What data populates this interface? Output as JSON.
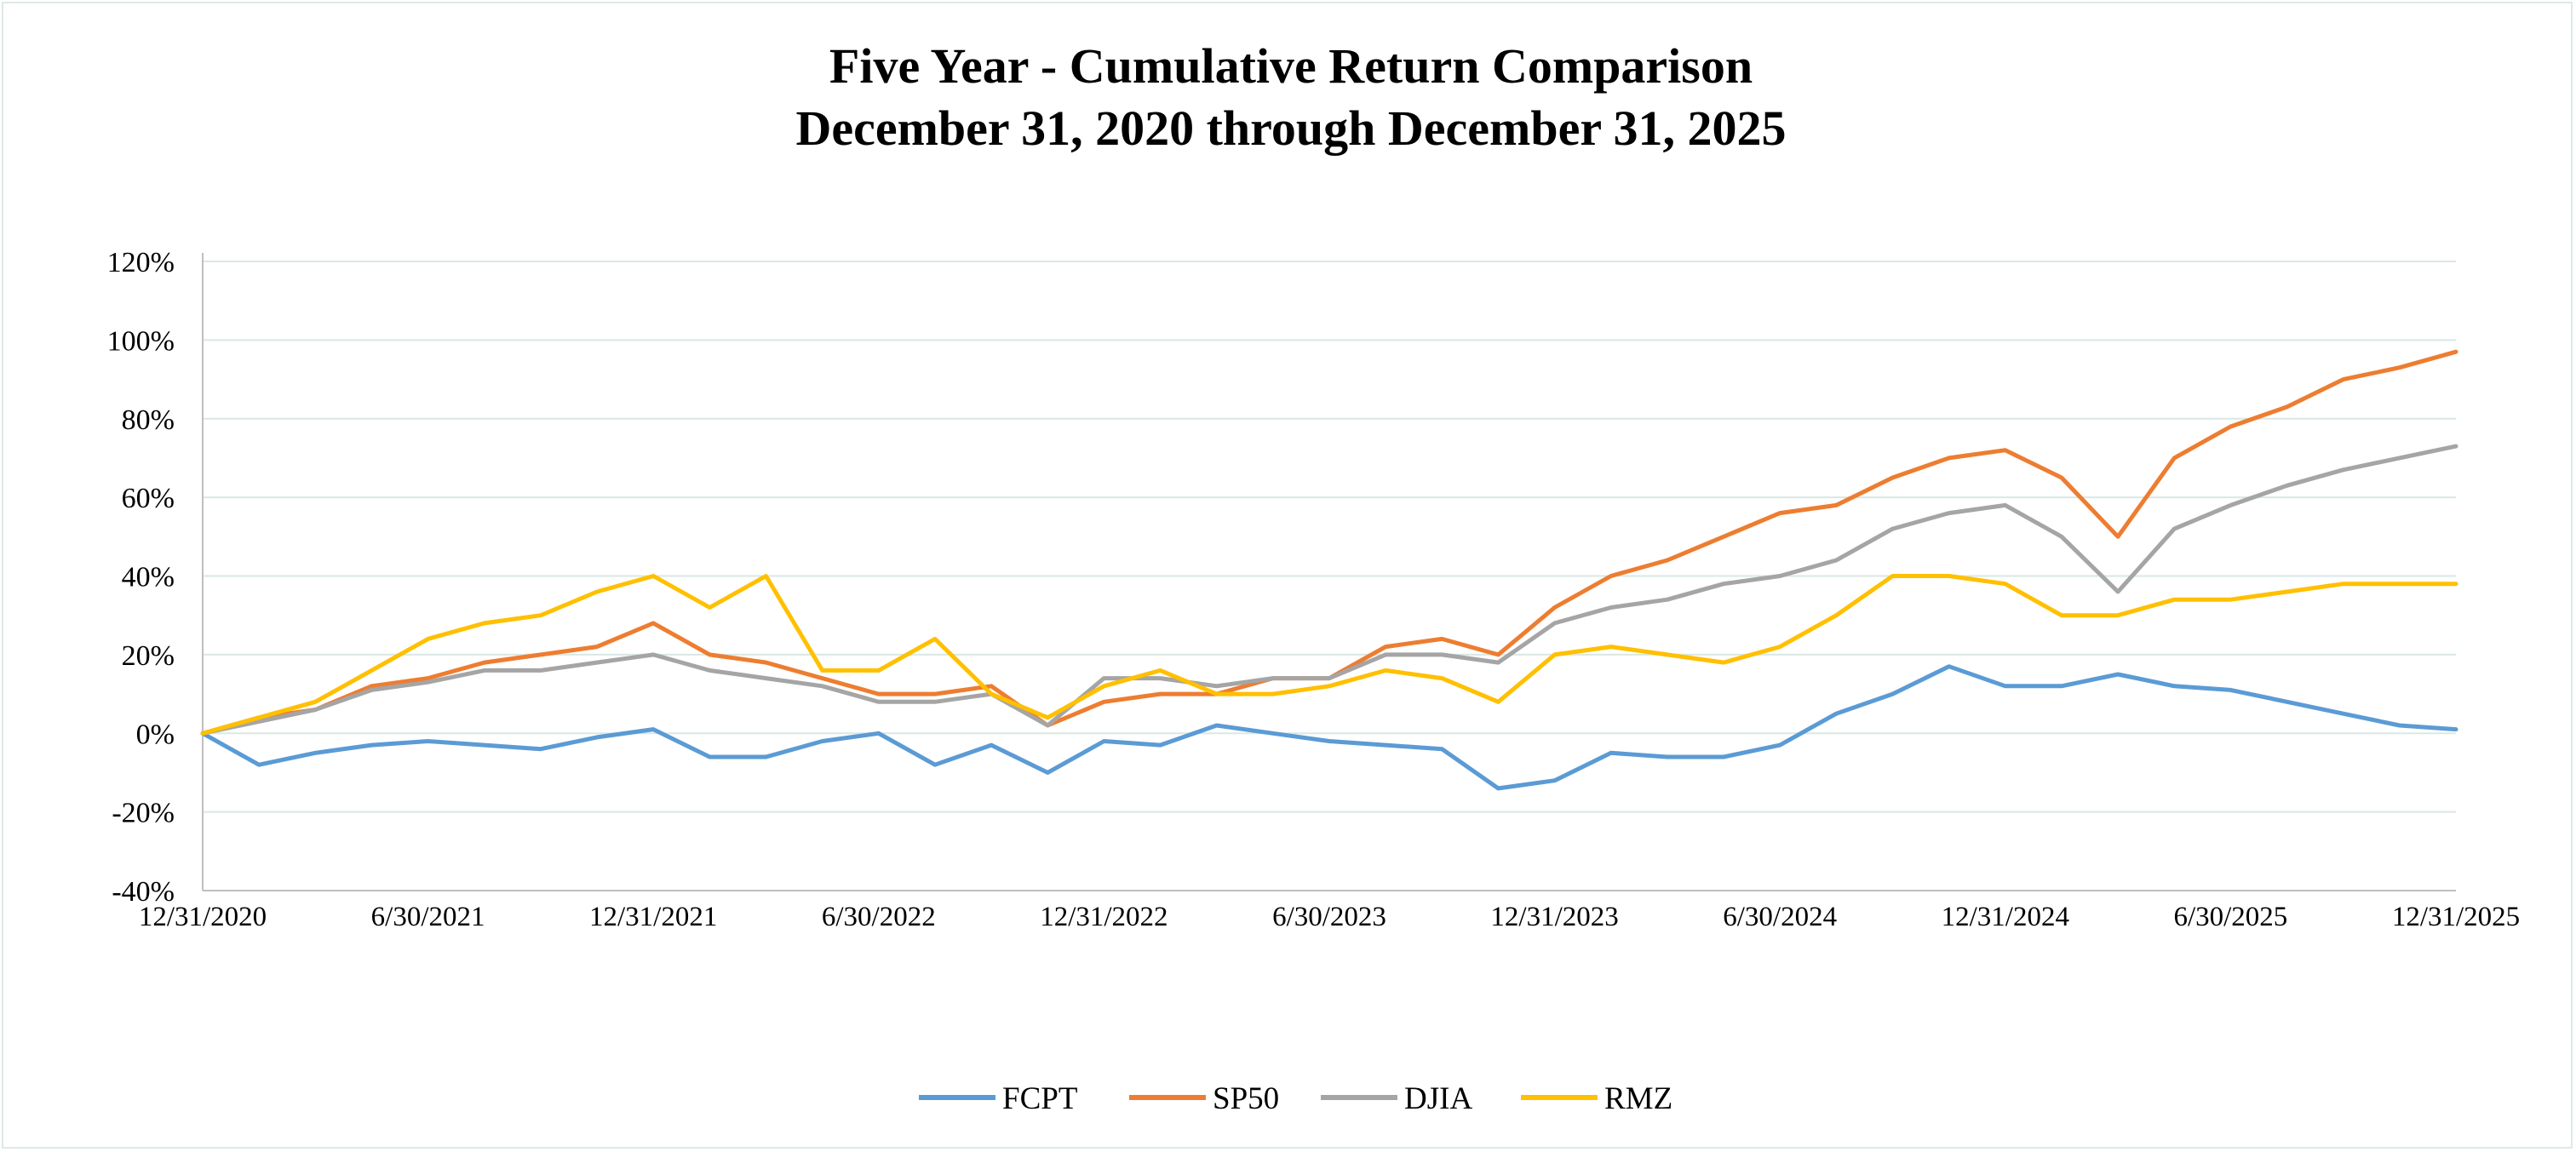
{
  "chart_data": {
    "type": "line",
    "title": "Five Year - Cumulative Return Comparison",
    "subtitle": "December 31, 2020 through December 31, 2025",
    "xlabel": "",
    "ylabel": "",
    "ylim": [
      -40,
      120
    ],
    "yticks": [
      -40,
      -20,
      0,
      20,
      40,
      60,
      80,
      100,
      120
    ],
    "ytick_labels": [
      "-40%",
      "-20%",
      "0%",
      "20%",
      "40%",
      "60%",
      "80%",
      "100%",
      "120%"
    ],
    "xlim": [
      0,
      10
    ],
    "xticks": [
      0,
      1,
      2,
      3,
      4,
      5,
      6,
      7,
      8,
      9,
      10
    ],
    "xtick_labels": [
      "12/31/2020",
      "6/30/2021",
      "12/31/2021",
      "6/30/2022",
      "12/31/2022",
      "6/30/2023",
      "12/31/2023",
      "6/30/2024",
      "12/31/2024",
      "6/30/2025",
      "12/31/2025"
    ],
    "grid": true,
    "legend_position": "bottom-center",
    "x": [
      0,
      0.25,
      0.5,
      0.75,
      1,
      1.25,
      1.5,
      1.75,
      2,
      2.25,
      2.5,
      2.75,
      3,
      3.25,
      3.5,
      3.75,
      4,
      4.25,
      4.5,
      4.75,
      5,
      5.25,
      5.5,
      5.75,
      6,
      6.25,
      6.5,
      6.75,
      7,
      7.25,
      7.5,
      7.75,
      8,
      8.25,
      8.5,
      8.75,
      9,
      9.25,
      9.5,
      9.75,
      10
    ],
    "series": [
      {
        "name": "FCPT",
        "color": "#5b9bd5",
        "values": [
          0,
          -8,
          -5,
          -3,
          -2,
          -3,
          -4,
          -1,
          1,
          -6,
          -6,
          -2,
          0,
          -8,
          -3,
          -10,
          -2,
          -3,
          2,
          0,
          -2,
          -3,
          -4,
          -14,
          -12,
          -5,
          -6,
          -6,
          -3,
          5,
          10,
          17,
          12,
          12,
          15,
          12,
          11,
          8,
          5,
          2,
          1
        ]
      },
      {
        "name": "SP50",
        "color": "#ed7d31",
        "values": [
          0,
          4,
          6,
          12,
          14,
          18,
          20,
          22,
          28,
          20,
          18,
          14,
          10,
          10,
          12,
          2,
          8,
          10,
          10,
          14,
          14,
          22,
          24,
          20,
          32,
          40,
          44,
          50,
          56,
          58,
          65,
          70,
          72,
          65,
          50,
          70,
          78,
          83,
          90,
          93,
          97
        ]
      },
      {
        "name": "DJIA",
        "color": "#a5a5a5",
        "values": [
          0,
          3,
          6,
          11,
          13,
          16,
          16,
          18,
          20,
          16,
          14,
          12,
          8,
          8,
          10,
          2,
          14,
          14,
          12,
          14,
          14,
          20,
          20,
          18,
          28,
          32,
          34,
          38,
          40,
          44,
          52,
          56,
          58,
          50,
          36,
          52,
          58,
          63,
          67,
          70,
          73
        ]
      },
      {
        "name": "RMZ",
        "color": "#ffc000",
        "values": [
          0,
          4,
          8,
          16,
          24,
          28,
          30,
          36,
          40,
          32,
          40,
          16,
          16,
          24,
          10,
          4,
          12,
          16,
          10,
          10,
          12,
          16,
          14,
          8,
          20,
          22,
          20,
          18,
          22,
          30,
          40,
          40,
          38,
          30,
          30,
          34,
          34,
          36,
          38,
          38,
          38
        ]
      }
    ]
  }
}
